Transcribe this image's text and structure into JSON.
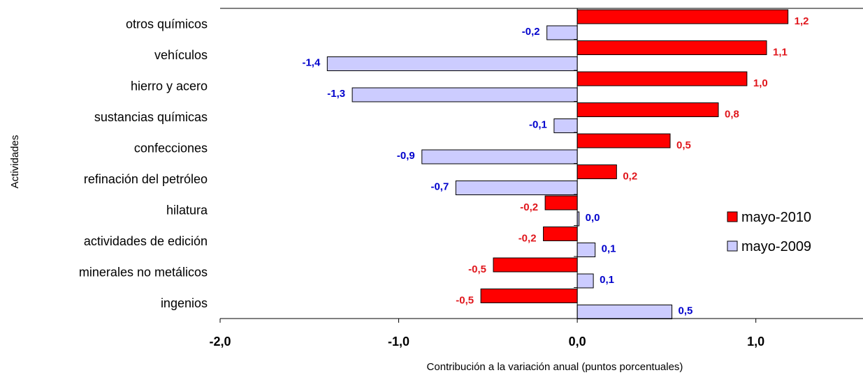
{
  "chart_data": {
    "type": "bar",
    "orientation": "horizontal",
    "title": "",
    "xlabel": "Contribución a la variación anual (puntos porcentuales)",
    "ylabel": "Actividades",
    "xlim": [
      -2.0,
      1.6
    ],
    "xticks": [
      -2.0,
      -1.0,
      0.0,
      1.0
    ],
    "xtick_labels": [
      "-2,0",
      "-1,0",
      "0,0",
      "1,0"
    ],
    "categories": [
      "otros químicos",
      "vehículos",
      "hierro y acero",
      "sustancias químicas",
      "confecciones",
      "refinación del petróleo",
      "hilatura",
      "actividades de edición",
      "minerales no metálicos",
      "ingenios"
    ],
    "series": [
      {
        "name": "mayo-2010",
        "color": "#ff0000",
        "label_color": "#e0161c",
        "values": [
          1.18,
          1.06,
          0.95,
          0.79,
          0.52,
          0.22,
          -0.18,
          -0.19,
          -0.47,
          -0.54
        ],
        "labels": [
          "1,2",
          "1,1",
          "1,0",
          "0,8",
          "0,5",
          "0,2",
          "-0,2",
          "-0,2",
          "-0,5",
          "-0,5"
        ]
      },
      {
        "name": "mayo-2009",
        "color": "#ccccff",
        "label_color": "#0000cc",
        "values": [
          -0.17,
          -1.4,
          -1.26,
          -0.13,
          -0.87,
          -0.68,
          0.01,
          0.1,
          0.09,
          0.53
        ],
        "labels": [
          "-0,2",
          "-1,4",
          "-1,3",
          "-0,1",
          "-0,9",
          "-0,7",
          "0,0",
          "0,1",
          "0,1",
          "0,5"
        ]
      }
    ],
    "grid": false,
    "legend": "right"
  }
}
